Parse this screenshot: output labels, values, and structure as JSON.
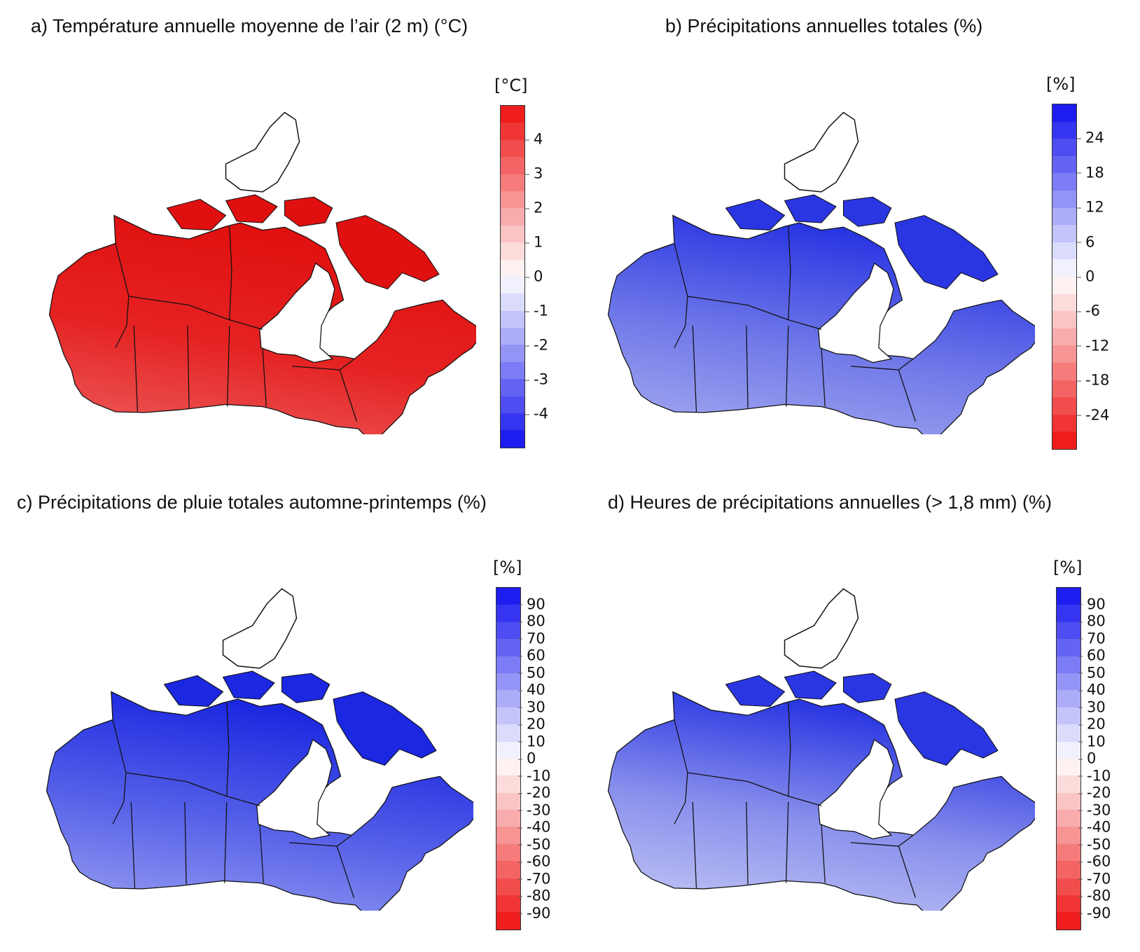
{
  "panels": [
    {
      "id": "a",
      "title": "a) Température annuelle moyenne de l’air (2 m) (°C)",
      "unit": "[°C]",
      "ticks": [
        "4",
        "3",
        "2",
        "1",
        "0",
        "-1",
        "-2",
        "-3",
        "-4"
      ],
      "scale": {
        "min": -5,
        "max": 5,
        "step": 0.5
      },
      "colors": {
        "positive": "#ee1111",
        "negative": "#1111ee",
        "zero": "#ffffff"
      },
      "map_fill": {
        "south": "#ee6a6a",
        "north": "#e52222",
        "arctic": "#e01010"
      }
    },
    {
      "id": "b",
      "title": "b) Précipitations annuelles totales (%)",
      "unit": "[%]",
      "ticks": [
        "24",
        "18",
        "12",
        "6",
        "0",
        "-6",
        "-12",
        "-18",
        "-24"
      ],
      "scale": {
        "min": -30,
        "max": 30,
        "step": 3
      },
      "colors": {
        "positive": "#1111ee",
        "negative": "#ee1111",
        "zero": "#ffffff"
      },
      "map_fill": {
        "south": "#b3b8f2",
        "north": "#6f78e8",
        "arctic": "#2a36e2"
      }
    },
    {
      "id": "c",
      "title": "c) Précipitations de pluie totales automne-printemps (%)",
      "unit": "[%]",
      "ticks": [
        "90",
        "80",
        "70",
        "60",
        "50",
        "40",
        "30",
        "20",
        "10",
        "0",
        "-10",
        "-20",
        "-30",
        "-40",
        "-50",
        "-60",
        "-70",
        "-80",
        "-90"
      ],
      "scale": {
        "min": -100,
        "max": 100,
        "step": 10
      },
      "colors": {
        "positive": "#1111ee",
        "negative": "#ee1111",
        "zero": "#ffffff"
      },
      "map_fill": {
        "south": "#a9aef3",
        "north": "#5560e8",
        "arctic": "#1b27e0"
      }
    },
    {
      "id": "d",
      "title": "d) Heures de précipitations annuelles (> 1,8 mm) (%)",
      "unit": "[%]",
      "ticks": [
        "90",
        "80",
        "70",
        "60",
        "50",
        "40",
        "30",
        "20",
        "10",
        "0",
        "-10",
        "-20",
        "-30",
        "-40",
        "-50",
        "-60",
        "-70",
        "-80",
        "-90"
      ],
      "scale": {
        "min": -100,
        "max": 100,
        "step": 10
      },
      "colors": {
        "positive": "#1111ee",
        "negative": "#ee1111",
        "zero": "#ffffff"
      },
      "map_fill": {
        "south": "#d2d4f6",
        "north": "#8a91ec",
        "arctic": "#2a36e2"
      }
    }
  ]
}
